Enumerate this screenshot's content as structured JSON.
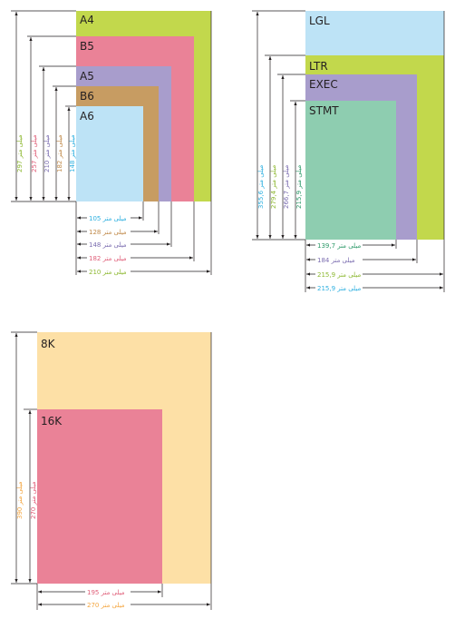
{
  "colors": {
    "green": "#c2d84c",
    "pink": "#ea8297",
    "lavender": "#a89dcc",
    "tan": "#c79c62",
    "light_blue": "#bde3f6",
    "teal": "#8ecdb0",
    "peach": "#fde0a6",
    "line": "#231f20"
  },
  "group_iso": {
    "labels": {
      "a4": "A4",
      "b5": "B5",
      "a5": "A5",
      "b6": "B6",
      "a6": "A6"
    },
    "heights": {
      "a4": "297 میلی متر",
      "b5": "257 میلی متر",
      "a5": "210 میلی متر",
      "b6": "182 میلی متر",
      "a6": "148 میلی متر"
    },
    "widths": {
      "a6": "105 میلی متر",
      "b6": "128 میلی متر",
      "a5": "148 میلی متر",
      "b5": "182 میلی متر",
      "a4": "210 میلی متر"
    }
  },
  "group_us": {
    "labels": {
      "lgl": "LGL",
      "ltr": "LTR",
      "exec": "EXEC",
      "stmt": "STMT"
    },
    "heights": {
      "lgl": "355,6 میلی متر",
      "ltr": "279,4 میلی متر",
      "exec": "266,7 میلی متر",
      "stmt": "215,9 میلی متر"
    },
    "widths": {
      "stmt": "139,7 میلی متر",
      "exec": "184 میلی متر",
      "ltr": "215,9 میلی متر",
      "lgl": "215,9 میلی متر"
    }
  },
  "group_k": {
    "labels": {
      "k8": "8K",
      "k16": "16K"
    },
    "heights": {
      "k8": "390 میلی متر",
      "k16": "270 میلی متر"
    },
    "widths": {
      "k16": "195 میلی متر",
      "k8": "270 میلی متر"
    }
  }
}
